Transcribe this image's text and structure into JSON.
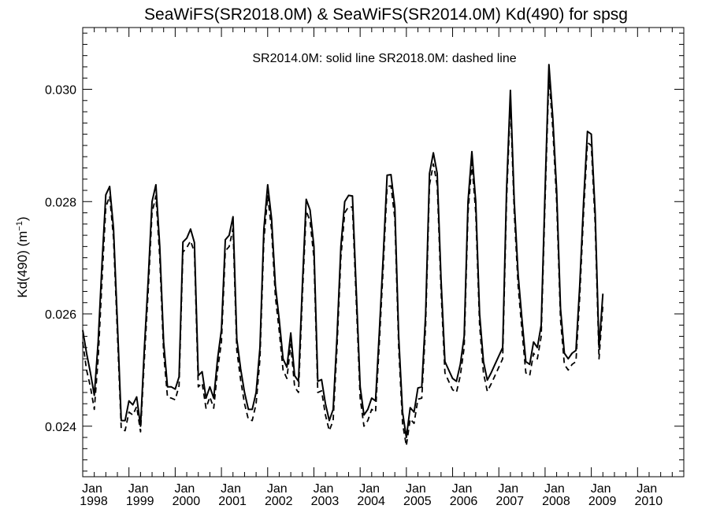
{
  "chart_data": {
    "type": "line",
    "title": "SeaWiFS(SR2018.0M) & SeaWiFS(SR2014.0M)  Kd(490) for spsg",
    "ylabel_base": "Kd(490) (m",
    "ylabel_exp": "−1",
    "ylabel_close": ")",
    "annotation": "SR2014.0M: solid line   SR2018.0M: dashed line",
    "ylim": [
      0.0231,
      0.0311
    ],
    "xlim": [
      1998.0,
      2011.0
    ],
    "yticks": [
      {
        "value": 0.024,
        "label": "0.024"
      },
      {
        "value": 0.026,
        "label": "0.026"
      },
      {
        "value": 0.028,
        "label": "0.028"
      },
      {
        "value": 0.03,
        "label": "0.030"
      }
    ],
    "xticks": [
      {
        "value": 1998,
        "month": "Jan",
        "year": "1998"
      },
      {
        "value": 1999,
        "month": "Jan",
        "year": "1999"
      },
      {
        "value": 2000,
        "month": "Jan",
        "year": "2000"
      },
      {
        "value": 2001,
        "month": "Jan",
        "year": "2001"
      },
      {
        "value": 2002,
        "month": "Jan",
        "year": "2002"
      },
      {
        "value": 2003,
        "month": "Jan",
        "year": "2003"
      },
      {
        "value": 2004,
        "month": "Jan",
        "year": "2004"
      },
      {
        "value": 2005,
        "month": "Jan",
        "year": "2005"
      },
      {
        "value": 2006,
        "month": "Jan",
        "year": "2006"
      },
      {
        "value": 2007,
        "month": "Jan",
        "year": "2007"
      },
      {
        "value": 2008,
        "month": "Jan",
        "year": "2008"
      },
      {
        "value": 2009,
        "month": "Jan",
        "year": "2009"
      },
      {
        "value": 2010,
        "month": "Jan",
        "year": "2010"
      }
    ],
    "x_start": "1998-01",
    "series": [
      {
        "label": "SR2014.0M",
        "style": "solid",
        "values": [
          0.02571,
          0.0253,
          0.02495,
          0.02455,
          0.0255,
          0.0269,
          0.02812,
          0.02827,
          0.02752,
          0.02585,
          0.0241,
          0.0241,
          0.02445,
          0.02438,
          0.02452,
          0.024,
          0.0254,
          0.0266,
          0.028,
          0.0283,
          0.0272,
          0.0255,
          0.0247,
          0.0247,
          0.02466,
          0.02488,
          0.02728,
          0.02735,
          0.02751,
          0.02727,
          0.0249,
          0.02497,
          0.0245,
          0.0247,
          0.0245,
          0.0252,
          0.02572,
          0.02732,
          0.0274,
          0.02773,
          0.02555,
          0.02502,
          0.0246,
          0.0243,
          0.0243,
          0.0246,
          0.0254,
          0.0275,
          0.0283,
          0.0277,
          0.0265,
          0.0259,
          0.0252,
          0.02505,
          0.02566,
          0.0249,
          0.0248,
          0.0265,
          0.02804,
          0.02785,
          0.0272,
          0.0248,
          0.02483,
          0.0244,
          0.0241,
          0.0243,
          0.0256,
          0.0272,
          0.028,
          0.02811,
          0.0281,
          0.0264,
          0.0247,
          0.0242,
          0.0243,
          0.0245,
          0.02445,
          0.0257,
          0.02704,
          0.02847,
          0.02848,
          0.0279,
          0.0256,
          0.02425,
          0.0238,
          0.02433,
          0.02425,
          0.02468,
          0.0247,
          0.026,
          0.0285,
          0.02887,
          0.0285,
          0.0266,
          0.02515,
          0.025,
          0.02485,
          0.0248,
          0.0251,
          0.0256,
          0.028,
          0.02889,
          0.028,
          0.026,
          0.02515,
          0.02482,
          0.02495,
          0.0251,
          0.02525,
          0.0254,
          0.0282,
          0.02998,
          0.028,
          0.0267,
          0.0259,
          0.02515,
          0.0251,
          0.0255,
          0.0254,
          0.0258,
          0.0282,
          0.03044,
          0.0295,
          0.0282,
          0.0261,
          0.0253,
          0.0252,
          0.0253,
          0.02535,
          0.0265,
          0.028,
          0.02925,
          0.0292,
          0.0278,
          0.0254,
          0.02636
        ]
      },
      {
        "label": "SR2018.0M",
        "style": "dashed",
        "values": [
          0.0255,
          0.025,
          0.0247,
          0.0243,
          0.0252,
          0.0266,
          0.0279,
          0.0281,
          0.02735,
          0.02565,
          0.02395,
          0.02392,
          0.02425,
          0.0242,
          0.02435,
          0.0239,
          0.0252,
          0.0264,
          0.0278,
          0.0281,
          0.027,
          0.0253,
          0.02452,
          0.0245,
          0.02447,
          0.02472,
          0.0271,
          0.02718,
          0.0273,
          0.0271,
          0.0247,
          0.02477,
          0.02432,
          0.02452,
          0.02432,
          0.025,
          0.0255,
          0.02712,
          0.0272,
          0.02752,
          0.02535,
          0.02482,
          0.0244,
          0.02412,
          0.0241,
          0.0244,
          0.0252,
          0.0273,
          0.0281,
          0.0275,
          0.0263,
          0.0257,
          0.025,
          0.02485,
          0.02546,
          0.0247,
          0.0246,
          0.0263,
          0.02784,
          0.02765,
          0.027,
          0.0246,
          0.02463,
          0.0242,
          0.02392,
          0.0241,
          0.0254,
          0.027,
          0.0278,
          0.02791,
          0.0279,
          0.0262,
          0.0245,
          0.024,
          0.0241,
          0.0243,
          0.02425,
          0.0255,
          0.02684,
          0.02827,
          0.02828,
          0.0277,
          0.0254,
          0.02405,
          0.02365,
          0.02413,
          0.02405,
          0.02448,
          0.0245,
          0.0258,
          0.0283,
          0.02867,
          0.0283,
          0.0264,
          0.02495,
          0.0248,
          0.02465,
          0.0246,
          0.0249,
          0.0254,
          0.0278,
          0.02869,
          0.0278,
          0.0258,
          0.02495,
          0.02462,
          0.02475,
          0.0249,
          0.02505,
          0.0252,
          0.028,
          0.02978,
          0.0278,
          0.0265,
          0.0257,
          0.02495,
          0.0249,
          0.0253,
          0.0252,
          0.0256,
          0.028,
          0.03024,
          0.0293,
          0.028,
          0.0259,
          0.0251,
          0.025,
          0.0251,
          0.02515,
          0.0263,
          0.0278,
          0.02905,
          0.029,
          0.0276,
          0.0252,
          0.02616
        ]
      }
    ]
  }
}
